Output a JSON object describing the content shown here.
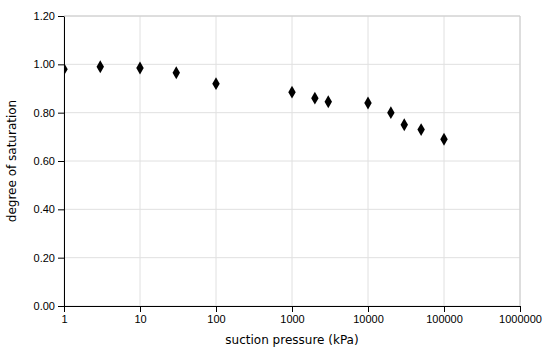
{
  "chart_data": {
    "type": "scatter",
    "xlabel": "suction pressure (kPa)",
    "ylabel": "degree of saturation",
    "x": [
      1,
      3,
      10,
      30,
      100,
      1000,
      2000,
      3000,
      10000,
      20000,
      30000,
      50000,
      100000
    ],
    "values": [
      0.98,
      0.99,
      0.985,
      0.965,
      0.92,
      0.885,
      0.86,
      0.845,
      0.84,
      0.8,
      0.75,
      0.73,
      0.69
    ],
    "color": "#000000",
    "marker": "diamond",
    "log": "x",
    "xlim": [
      1,
      1000000
    ],
    "xticks": [
      1,
      10,
      100,
      1000,
      10000,
      100000,
      1000000
    ],
    "ylim": [
      0.0,
      1.2
    ],
    "yticks": [
      {
        "value": 0.0,
        "label": "0.00"
      },
      {
        "value": 0.2,
        "label": "0.20"
      },
      {
        "value": 0.4,
        "label": "0.40"
      },
      {
        "value": 0.6,
        "label": "0.60"
      },
      {
        "value": 0.8,
        "label": "0.80"
      },
      {
        "value": 1.0,
        "label": "1.00"
      },
      {
        "value": 1.2,
        "label": "1.20"
      }
    ],
    "grid": true
  }
}
